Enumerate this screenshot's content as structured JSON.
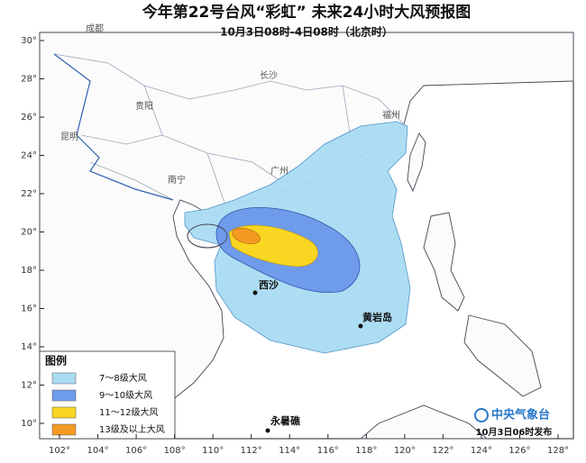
{
  "header": {
    "title": "今年第22号台风“彩虹” 未来24小时大风预报图",
    "subtitle": "10月3日08时-4日08时（北京时）"
  },
  "map": {
    "lat_ticks": [
      {
        "value": 30,
        "label": "30°"
      },
      {
        "value": 28,
        "label": "28°"
      },
      {
        "value": 26,
        "label": "26°"
      },
      {
        "value": 24,
        "label": "24°"
      },
      {
        "value": 22,
        "label": "22°"
      },
      {
        "value": 20,
        "label": "20°"
      },
      {
        "value": 18,
        "label": "18°"
      },
      {
        "value": 16,
        "label": "16°"
      },
      {
        "value": 14,
        "label": "14°"
      },
      {
        "value": 12,
        "label": "12°"
      },
      {
        "value": 10,
        "label": "10°"
      }
    ],
    "lon_ticks": [
      {
        "value": 102,
        "label": "102°"
      },
      {
        "value": 104,
        "label": "104°"
      },
      {
        "value": 106,
        "label": "106°"
      },
      {
        "value": 108,
        "label": "108°"
      },
      {
        "value": 110,
        "label": "110°"
      },
      {
        "value": 112,
        "label": "112°"
      },
      {
        "value": 114,
        "label": "114°"
      },
      {
        "value": 116,
        "label": "116°"
      },
      {
        "value": 118,
        "label": "118°"
      },
      {
        "value": 120,
        "label": "120°"
      },
      {
        "value": 122,
        "label": "122°"
      },
      {
        "value": 124,
        "label": "124°"
      },
      {
        "value": 126,
        "label": "126°"
      },
      {
        "value": 128,
        "label": "128°"
      }
    ],
    "places": [
      "成都",
      "贵阳",
      "昆明",
      "长沙",
      "南宁",
      "广州",
      "福州",
      "西沙",
      "黄岩岛",
      "永暑礁"
    ]
  },
  "legend": {
    "title": "图例",
    "items": [
      {
        "label": "7～8级大风",
        "color": "#a9dcf3"
      },
      {
        "label": "9～10级大风",
        "color": "#6e9bea"
      },
      {
        "label": "11～12级大风",
        "color": "#f8d622"
      },
      {
        "label": "13级及以上大风",
        "color": "#f39a22"
      }
    ]
  },
  "footer": {
    "agency": "中央气象台",
    "issued": "10月3日06时发布"
  }
}
